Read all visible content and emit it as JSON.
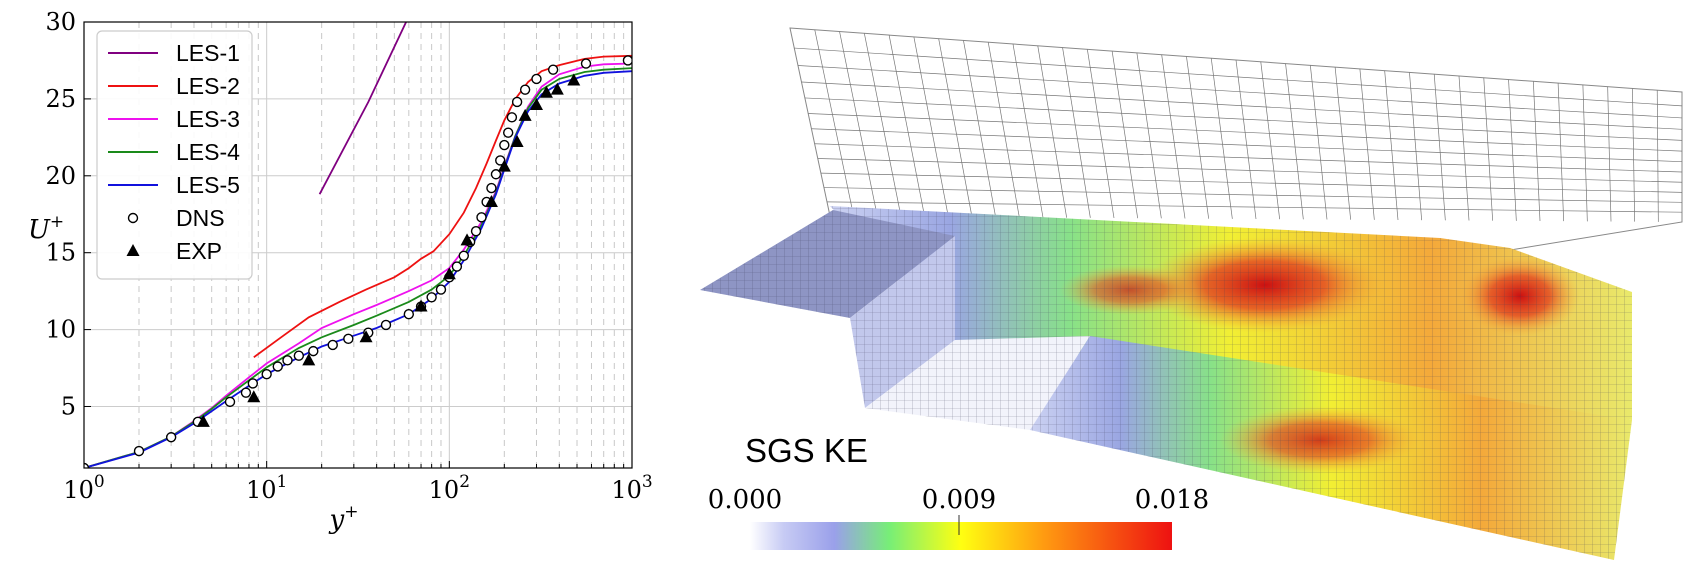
{
  "chart_data": [
    {
      "type": "line",
      "xlabel": "y",
      "xlabel_sup": "+",
      "ylabel": "U",
      "ylabel_sup": "+",
      "xscale": "log",
      "xlim": [
        1,
        1000
      ],
      "ylim": [
        1,
        30
      ],
      "x_ticks": [
        {
          "base": "10",
          "exp": "0"
        },
        {
          "base": "10",
          "exp": "1"
        },
        {
          "base": "10",
          "exp": "2"
        },
        {
          "base": "10",
          "exp": "3"
        }
      ],
      "y_ticks": [
        "5",
        "10",
        "15",
        "20",
        "25",
        "30"
      ],
      "y_tick_values": [
        5,
        10,
        15,
        20,
        25,
        30
      ],
      "grid": true,
      "legend_position": "top-left",
      "series": [
        {
          "name": "LES-1",
          "style": "line",
          "color": "#800080",
          "x": [
            19.5,
            36,
            58
          ],
          "y": [
            18.8,
            24.8,
            30
          ]
        },
        {
          "name": "LES-2",
          "style": "line",
          "color": "#ee1111",
          "x": [
            8.5,
            12,
            17,
            25,
            35,
            50,
            60,
            70,
            82,
            100,
            120,
            140,
            160,
            180,
            200,
            230,
            270,
            320,
            400,
            550,
            700,
            1000
          ],
          "y": [
            8.2,
            9.5,
            10.8,
            11.8,
            12.6,
            13.4,
            14.0,
            14.6,
            15.1,
            16.2,
            17.6,
            19.2,
            20.8,
            22.3,
            23.6,
            25.0,
            26.1,
            26.8,
            27.2,
            27.6,
            27.75,
            27.8
          ]
        },
        {
          "name": "LES-3",
          "style": "line",
          "color": "#ee11ee",
          "x": [
            1,
            2,
            3,
            4,
            5,
            6,
            8,
            10,
            15,
            20,
            30,
            40,
            60,
            80,
            100,
            120,
            150,
            180,
            200,
            230,
            270,
            320,
            400,
            550,
            700,
            1000
          ],
          "y": [
            1,
            2.05,
            3.05,
            4.05,
            4.9,
            5.7,
            6.9,
            7.8,
            9.1,
            10.1,
            11.0,
            11.6,
            12.5,
            13.2,
            14.0,
            15.2,
            17.0,
            19.0,
            20.6,
            22.6,
            24.5,
            25.8,
            26.6,
            27.1,
            27.25,
            27.3
          ]
        },
        {
          "name": "LES-4",
          "style": "line",
          "color": "#1a8a1a",
          "x": [
            1,
            2,
            3,
            4,
            5,
            6,
            8,
            10,
            15,
            20,
            30,
            40,
            60,
            80,
            100,
            120,
            150,
            180,
            200,
            230,
            270,
            320,
            400,
            550,
            700,
            1000
          ],
          "y": [
            1,
            2.05,
            3.05,
            4.0,
            4.85,
            5.6,
            6.7,
            7.55,
            8.8,
            9.5,
            10.3,
            10.9,
            11.8,
            12.6,
            13.5,
            14.8,
            16.8,
            18.9,
            20.5,
            22.6,
            24.4,
            25.6,
            26.3,
            26.75,
            26.9,
            27.0
          ]
        },
        {
          "name": "LES-5",
          "style": "line",
          "color": "#1111dd",
          "x": [
            1,
            2,
            3,
            4,
            5,
            6,
            8,
            10,
            15,
            20,
            30,
            40,
            60,
            80,
            100,
            120,
            150,
            180,
            200,
            230,
            270,
            320,
            400,
            550,
            700,
            1000
          ],
          "y": [
            1,
            2.0,
            3.0,
            3.9,
            4.7,
            5.35,
            6.35,
            7.1,
            8.2,
            8.9,
            9.6,
            10.1,
            11.0,
            12.0,
            13.1,
            14.5,
            16.6,
            18.8,
            20.4,
            22.5,
            24.2,
            25.3,
            26.0,
            26.5,
            26.7,
            26.8
          ]
        },
        {
          "name": "DNS",
          "style": "marker",
          "marker": "open-circle",
          "color": "#000000",
          "x": [
            1,
            2,
            3,
            4.2,
            6.3,
            7.7,
            8.4,
            10,
            11.5,
            13,
            15,
            18,
            23,
            28,
            36,
            45,
            60,
            70,
            80,
            90,
            100,
            110,
            120,
            130,
            140,
            150,
            160,
            170,
            180,
            190,
            200,
            210,
            220,
            235,
            260,
            300,
            370,
            560,
            950
          ],
          "y": [
            1,
            2.1,
            3.0,
            4.0,
            5.3,
            5.9,
            6.5,
            7.1,
            7.6,
            8.0,
            8.3,
            8.6,
            9.0,
            9.4,
            9.8,
            10.3,
            11.0,
            11.5,
            12.1,
            12.6,
            13.4,
            14.1,
            14.8,
            15.7,
            16.4,
            17.3,
            18.3,
            19.2,
            20.1,
            21.0,
            22.0,
            22.8,
            23.8,
            24.8,
            25.6,
            26.3,
            26.9,
            27.3,
            27.5
          ]
        },
        {
          "name": "EXP",
          "style": "marker",
          "marker": "filled-triangle",
          "color": "#000000",
          "x": [
            4.5,
            8.5,
            17,
            35,
            70,
            100,
            125,
            170,
            200,
            235,
            260,
            300,
            340,
            390,
            480
          ],
          "y": [
            4.0,
            5.6,
            8.0,
            9.5,
            11.5,
            13.6,
            15.8,
            18.3,
            20.6,
            22.2,
            23.9,
            24.6,
            25.4,
            25.6,
            26.2
          ]
        }
      ]
    }
  ],
  "colorbar": {
    "title": "SGS KE",
    "tick_labels": [
      "0.000",
      "0.009",
      "0.018"
    ],
    "tick_values": [
      0,
      0.009,
      0.018
    ],
    "range": [
      0,
      0.018
    ],
    "colors": [
      "#eef0fa",
      "#9aa0ea",
      "#77ee77",
      "#ffff11",
      "#ff9911",
      "#ee1111"
    ]
  }
}
